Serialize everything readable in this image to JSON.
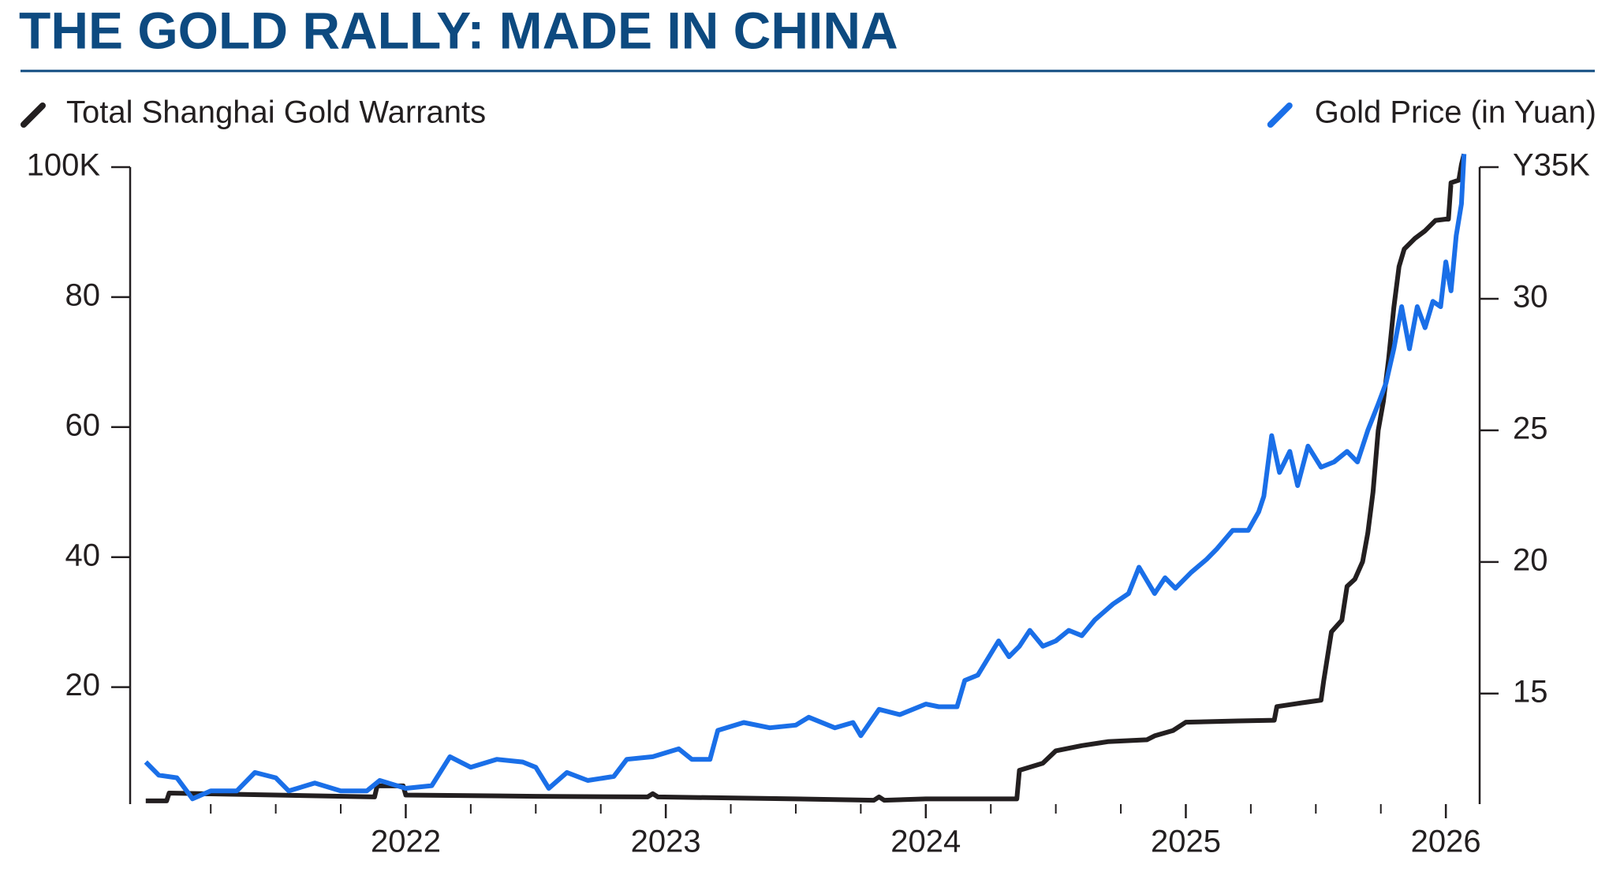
{
  "chart_data": {
    "type": "line",
    "title": "THE GOLD RALLY: MADE IN CHINA",
    "xlim": [
      2020.94,
      2026.13
    ],
    "xticks": [
      2022,
      2023,
      2024,
      2025,
      2026
    ],
    "xminorticks": [
      2021.25,
      2021.5,
      2021.75,
      2022.25,
      2022.5,
      2022.75,
      2023.25,
      2023.5,
      2023.75,
      2024.25,
      2024.5,
      2024.75,
      2025.25,
      2025.5,
      2025.75
    ],
    "ylim": [
      2,
      100
    ],
    "yticks": [
      20,
      40,
      60,
      80,
      {
        "value": 100,
        "label": "100K"
      }
    ],
    "y2lim": [
      10.8,
      35
    ],
    "y2ticks": [
      15,
      20,
      25,
      30,
      {
        "value": 35,
        "label": "Y35K"
      }
    ],
    "series": [
      {
        "name": "Total Shanghai Gold Warrants",
        "color": "#231f20",
        "axis": "y",
        "x": [
          2021.0,
          2021.08,
          2021.09,
          2021.5,
          2021.88,
          2021.89,
          2021.99,
          2022.0,
          2022.5,
          2022.93,
          2022.95,
          2022.97,
          2023.5,
          2023.8,
          2023.82,
          2023.84,
          2024.0,
          2024.35,
          2024.36,
          2024.45,
          2024.5,
          2024.6,
          2024.7,
          2024.85,
          2024.88,
          2024.95,
          2025.0,
          2025.2,
          2025.34,
          2025.35,
          2025.45,
          2025.52,
          2025.53,
          2025.56,
          2025.6,
          2025.62,
          2025.65,
          2025.68,
          2025.7,
          2025.72,
          2025.74,
          2025.76,
          2025.78,
          2025.8,
          2025.82,
          2025.84,
          2025.88,
          2025.92,
          2025.96,
          2026.0,
          2026.01,
          2026.02,
          2026.05,
          2026.06,
          2026.07
        ],
        "values": [
          2.5,
          2.5,
          3.7,
          3.4,
          3.1,
          4.8,
          4.8,
          3.4,
          3.2,
          3.1,
          3.6,
          3.1,
          2.8,
          2.6,
          3.1,
          2.6,
          2.8,
          2.8,
          7.2,
          8.3,
          10.2,
          11.0,
          11.6,
          11.9,
          12.5,
          13.3,
          14.6,
          14.8,
          14.9,
          17.0,
          17.6,
          18.0,
          20.9,
          28.5,
          30.3,
          35.5,
          36.6,
          39.3,
          43.7,
          50.0,
          59.5,
          64.0,
          70.5,
          78.4,
          84.7,
          87.4,
          89.0,
          90.2,
          91.8,
          92.0,
          92.0,
          97.6,
          98.0,
          100.4,
          102.0
        ]
      },
      {
        "name": "Gold Price (in Yuan)",
        "color": "#1a6fe8",
        "axis": "y2",
        "x": [
          2021.0,
          2021.05,
          2021.12,
          2021.18,
          2021.25,
          2021.35,
          2021.42,
          2021.5,
          2021.55,
          2021.65,
          2021.75,
          2021.85,
          2021.9,
          2022.0,
          2022.1,
          2022.17,
          2022.25,
          2022.35,
          2022.45,
          2022.5,
          2022.55,
          2022.62,
          2022.7,
          2022.8,
          2022.85,
          2022.95,
          2023.05,
          2023.1,
          2023.17,
          2023.2,
          2023.3,
          2023.4,
          2023.5,
          2023.55,
          2023.65,
          2023.72,
          2023.75,
          2023.82,
          2023.9,
          2024.0,
          2024.05,
          2024.12,
          2024.15,
          2024.2,
          2024.28,
          2024.32,
          2024.36,
          2024.4,
          2024.45,
          2024.5,
          2024.55,
          2024.6,
          2024.65,
          2024.72,
          2024.78,
          2024.82,
          2024.88,
          2024.92,
          2024.96,
          2025.02,
          2025.08,
          2025.12,
          2025.18,
          2025.24,
          2025.28,
          2025.3,
          2025.33,
          2025.36,
          2025.4,
          2025.43,
          2025.47,
          2025.52,
          2025.57,
          2025.62,
          2025.66,
          2025.7,
          2025.74,
          2025.77,
          2025.8,
          2025.83,
          2025.86,
          2025.89,
          2025.92,
          2025.95,
          2025.98,
          2026.0,
          2026.02,
          2026.04,
          2026.06,
          2026.07
        ],
        "values": [
          12.4,
          11.9,
          11.8,
          11.0,
          11.3,
          11.3,
          12.0,
          11.8,
          11.3,
          11.6,
          11.3,
          11.3,
          11.7,
          11.4,
          11.5,
          12.6,
          12.2,
          12.5,
          12.4,
          12.2,
          11.4,
          12.0,
          11.7,
          11.85,
          12.5,
          12.6,
          12.9,
          12.5,
          12.5,
          13.6,
          13.9,
          13.7,
          13.8,
          14.1,
          13.7,
          13.9,
          13.4,
          14.4,
          14.2,
          14.6,
          14.5,
          14.5,
          15.5,
          15.7,
          17.0,
          16.4,
          16.8,
          17.4,
          16.8,
          17.0,
          17.4,
          17.2,
          17.8,
          18.4,
          18.8,
          19.8,
          18.8,
          19.4,
          19.0,
          19.6,
          20.1,
          20.5,
          21.2,
          21.2,
          21.9,
          22.5,
          24.8,
          23.4,
          24.2,
          22.9,
          24.4,
          23.6,
          23.8,
          24.2,
          23.8,
          25.0,
          26.0,
          26.8,
          28.1,
          29.7,
          28.1,
          29.7,
          28.9,
          29.9,
          29.7,
          31.4,
          30.3,
          32.4,
          33.6,
          35.5
        ]
      }
    ]
  }
}
